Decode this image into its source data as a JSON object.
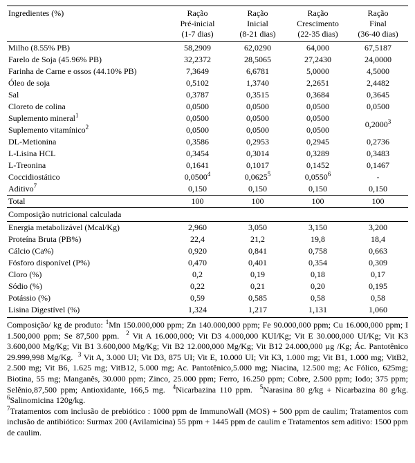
{
  "table": {
    "header": {
      "col0_html": "Ingredientes (%)",
      "col1_html": "Ração<br>Pré-inicial<br>(1-7 dias)",
      "col2_html": "Ração<br>Inicial<br>(8-21 dias)",
      "col3_html": "Ração<br>Crescimento<br>(22-35 dias)",
      "col4_html": "Ração<br>Final<br>(36-40 dias)"
    },
    "ingredients": [
      {
        "name_html": "Milho (8.55% PB)",
        "v": [
          "58,2909",
          "62,0290",
          "64,000",
          "67,5187"
        ]
      },
      {
        "name_html": "Farelo de Soja (45.96% PB)",
        "v": [
          "32,2372",
          "28,5065",
          "27,2430",
          "24,0000"
        ]
      },
      {
        "name_html": "Farinha de Carne e ossos (44.10% PB)",
        "v": [
          "7,3649",
          "6,6781",
          "5,0000",
          "4,5000"
        ]
      },
      {
        "name_html": "Óleo de soja",
        "v": [
          "0,5102",
          "1,3740",
          "2,2651",
          "2,4482"
        ]
      },
      {
        "name_html": "Sal",
        "v": [
          "0,3787",
          "0,3515",
          "0,3684",
          "0,3645"
        ]
      },
      {
        "name_html": "Cloreto de colina",
        "v": [
          "0,0500",
          "0,0500",
          "0,0500",
          "0,0500"
        ]
      },
      {
        "name_html": "Suplemento mineral<sup>1</sup>",
        "v": [
          "0,0500",
          "0,0500",
          "0,0500",
          "0,2000<sup>3</sup>"
        ],
        "v3_rowspan": 2
      },
      {
        "name_html": "Suplemento vitamínico<sup>2</sup>",
        "v": [
          "0,0500",
          "0,0500",
          "0,0500",
          ""
        ]
      },
      {
        "name_html": "DL-Metionina",
        "v": [
          "0,3586",
          "0,2953",
          "0,2945",
          "0,2736"
        ]
      },
      {
        "name_html": "L-Lisina HCL",
        "v": [
          "0,3454",
          "0,3014",
          "0,3289",
          "0,3483"
        ]
      },
      {
        "name_html": "L-Treonina",
        "v": [
          "0,1641",
          "0,1017",
          "0,1452",
          "0,1467"
        ]
      },
      {
        "name_html": "Coccidiostático",
        "v": [
          "0,0500<sup>4</sup>",
          "0,0625<sup>5</sup>",
          "0,0550<sup>6</sup>",
          "-"
        ]
      },
      {
        "name_html": "Aditivo<sup>7</sup>",
        "v": [
          "0,150",
          "0,150",
          "0,150",
          "0,150"
        ]
      }
    ],
    "total": {
      "name_html": "Total",
      "v": [
        "100",
        "100",
        "100",
        "100"
      ]
    },
    "section_label": "Composição nutricional calculada",
    "nutrition": [
      {
        "name_html": "Energia metabolizável (Mcal/Kg)",
        "v": [
          "2,960",
          "3,050",
          "3,150",
          "3,200"
        ]
      },
      {
        "name_html": "Proteína Bruta (PB%)",
        "v": [
          "22,4",
          "21,2",
          "19,8",
          "18,4"
        ]
      },
      {
        "name_html": "Cálcio (Ca%)",
        "v": [
          "0,920",
          "0,841",
          "0,758",
          "0,663"
        ]
      },
      {
        "name_html": "Fósforo disponível (P%)",
        "v": [
          "0,470",
          "0,401",
          "0,354",
          "0,309"
        ]
      },
      {
        "name_html": "Cloro (%)",
        "v": [
          "0,2",
          "0,19",
          "0,18",
          "0,17"
        ]
      },
      {
        "name_html": "Sódio (%)",
        "v": [
          "0,22",
          "0,21",
          "0,20",
          "0,195"
        ]
      },
      {
        "name_html": "Potássio (%)",
        "v": [
          "0,59",
          "0,585",
          "0,58",
          "0,58"
        ]
      },
      {
        "name_html": "Lisina Digestível (%)",
        "v": [
          "1,324",
          "1,217",
          "1,131",
          "1,060"
        ]
      }
    ]
  },
  "footnotes_html": "Composição/ kg de produto: <sup>1</sup>Mn 150.000,000 ppm; Zn 140.000,000 ppm; Fe 90.000,000 ppm; Cu 16.000,000 ppm; I 1.500,000 ppm; Se 87,500 ppm. &nbsp;<sup>2</sup> Vit A 16.000,000; Vit D3 4.000,000 KUI/Kg; Vit E 30.000,000 UI/Kg; Vit K3 3.600,000 Mg/Kg; Vit B1 3.600,000 Mg/Kg; Vit B2 12.000,000 Mg/Kg; Vit B12 24.000,000 µg /Kg; Ác. Pantotênico 29.999,998 Mg/Kg. &nbsp;<sup>3</sup> Vit A, 3.000 UI; Vit D3, 875 UI; Vit E, 10.000 UI; Vit K3, 1.000 mg; Vit B1, 1.000 mg; VitB2, 2.500 mg; Vit B6, 1.625 mg; VitB12, 5.000 mg; Ac. Pantotênico,5.000 mg; Niacina, 12.500 mg; Ac Fólico, 625mg; Biotina, 55 mg; Manganês, 30.000 ppm; Zinco, 25.000 ppm; Ferro, 16.250 ppm; Cobre, 2.500 ppm; Iodo; 375 ppm; Selênio,87,500 ppm; Antioxidante, 166,5 mg. &nbsp;<sup>4</sup>Nicarbazina 110 ppm. &nbsp;<sup>5</sup>Narasina 80 g/kg + Nicarbazina 80 g/kg. <sup>6</sup>Salinomicina 120g/kg.<br><sup>7</sup>Tratamentos com inclusão de prebiótico : 1000 ppm de ImmunoWall (MOS) + 500 ppm de caulim; Tratamentos com inclusão de antibiótico: Surmax 200 (Avilamicina) 55 ppm + 1445 ppm de caulim e Tratamentos sem aditivo: 1500 ppm de caulim."
}
